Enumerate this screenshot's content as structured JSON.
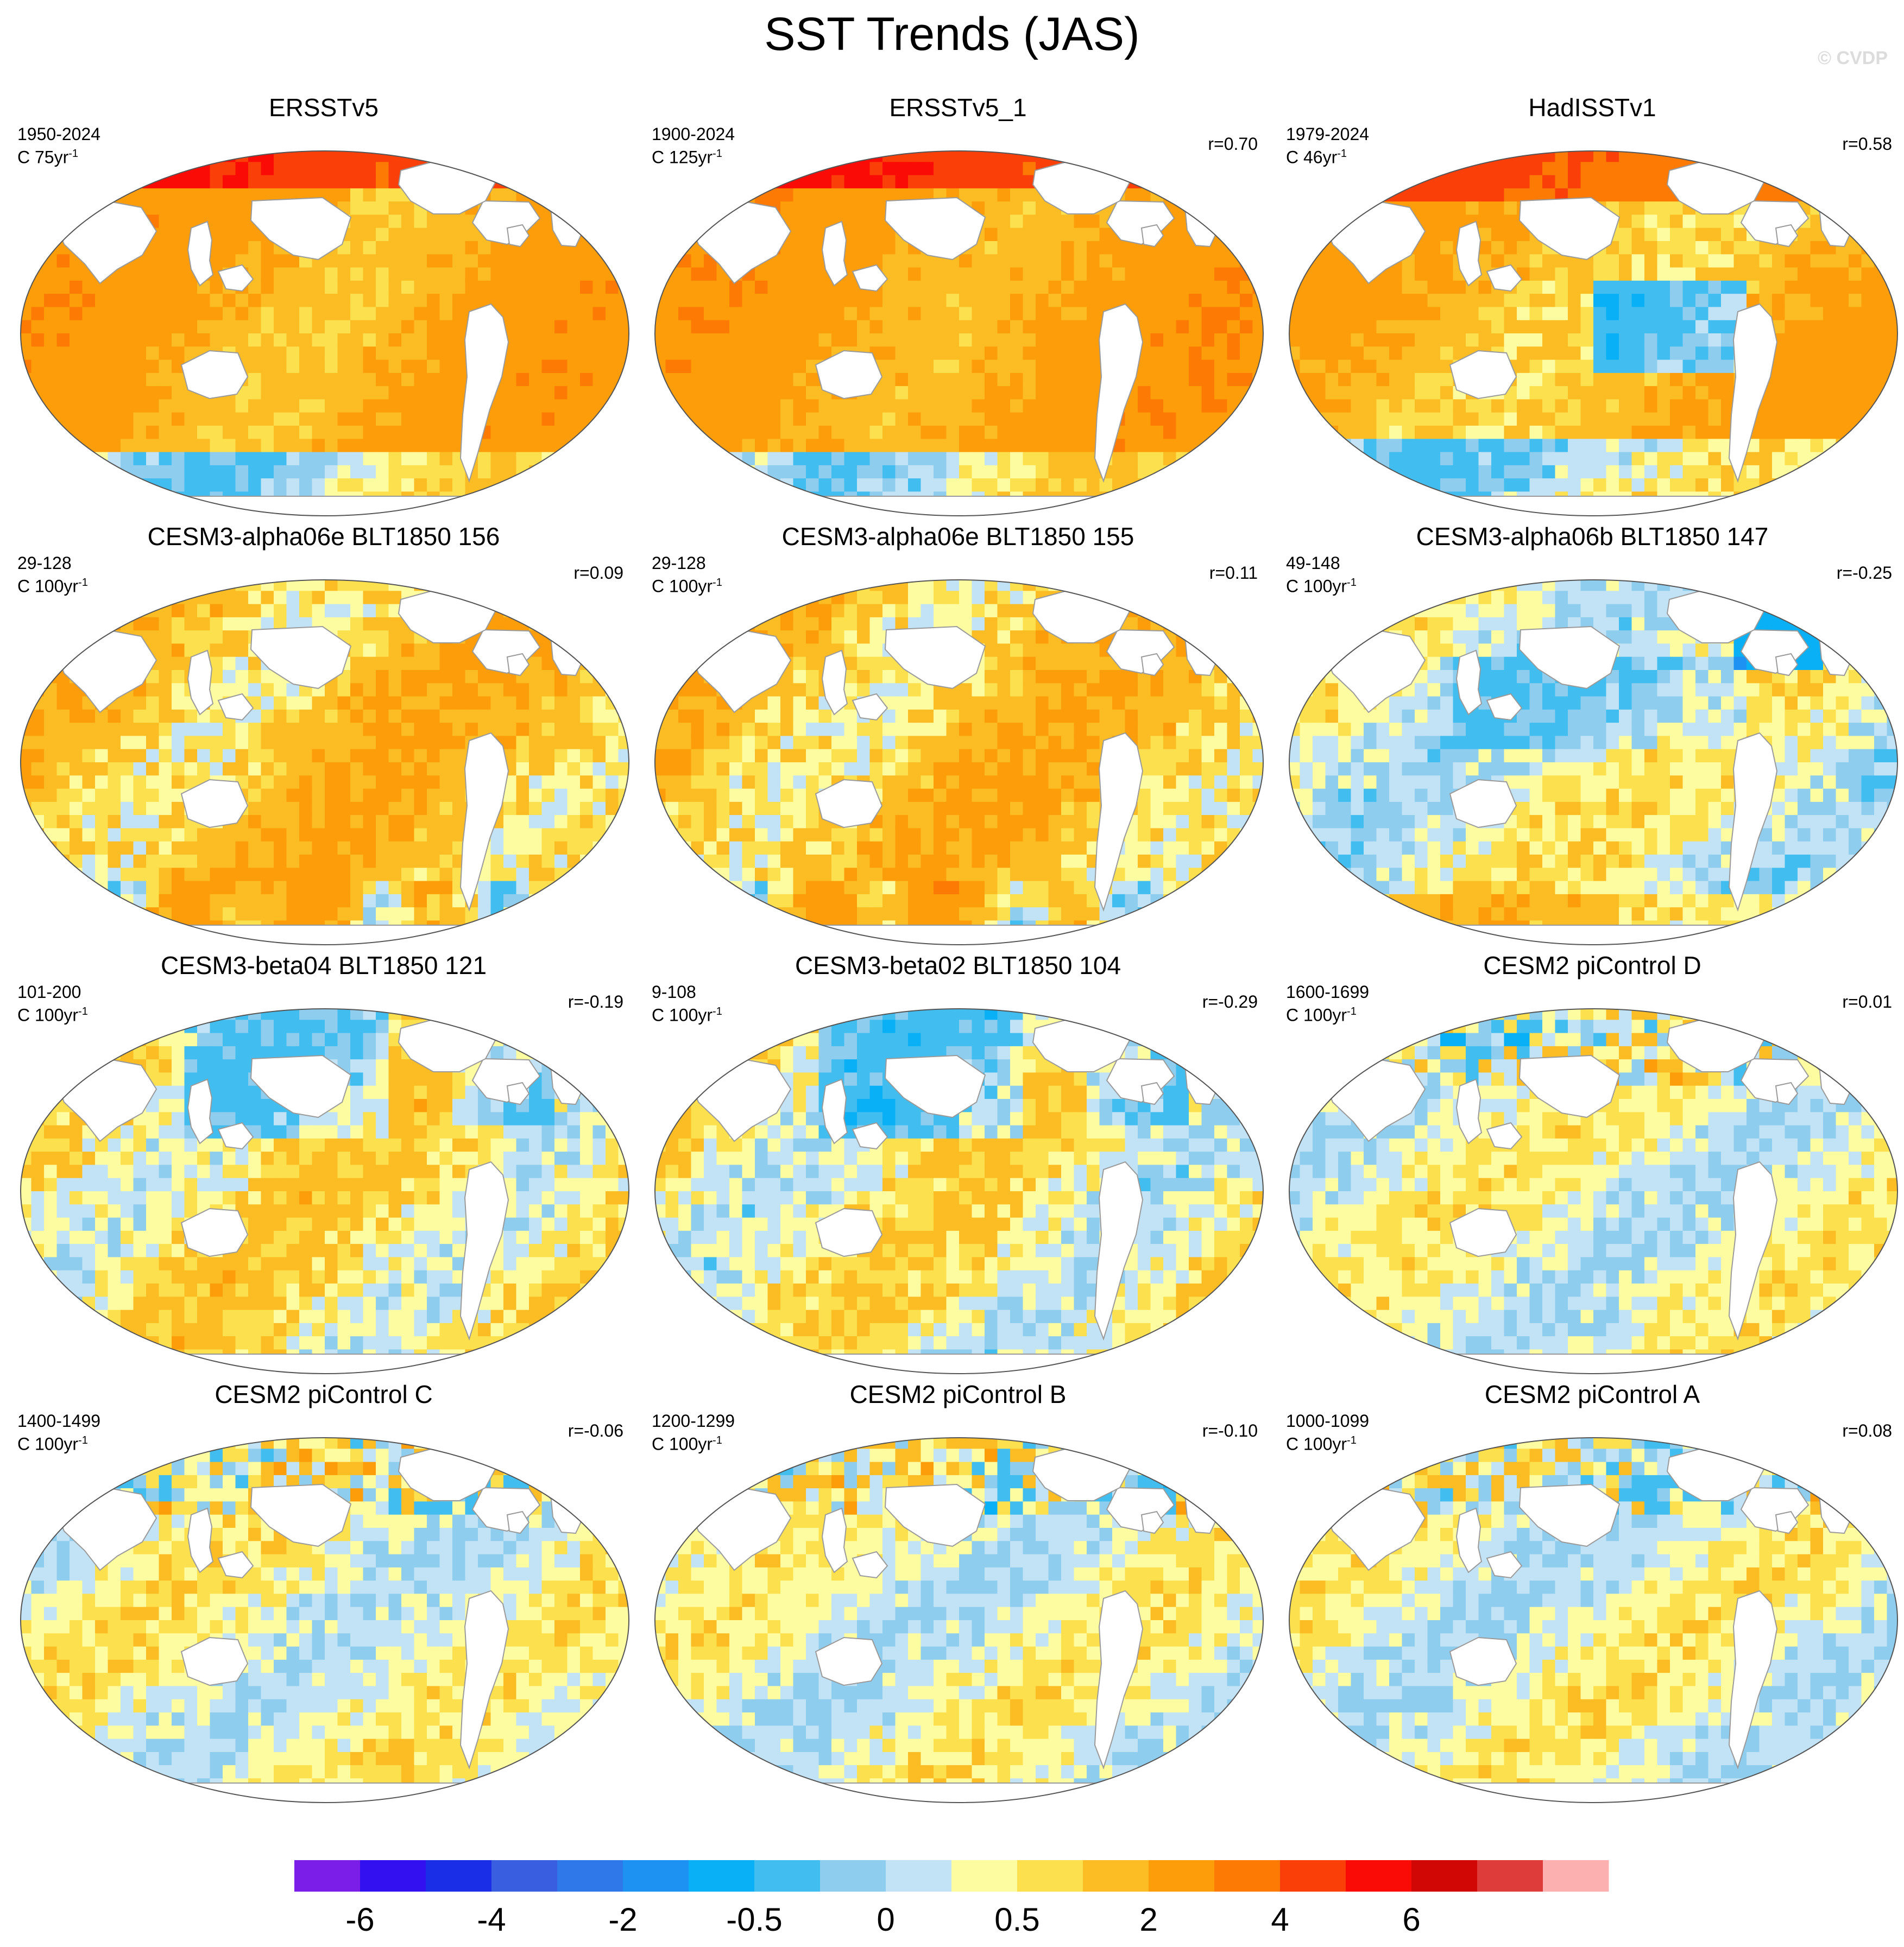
{
  "figure": {
    "title": "SST Trends (JAS)",
    "watermark": "© CVDP"
  },
  "colors": {
    "land": "#ffffff",
    "coast": "#9a9a9a",
    "outline": "#555555"
  },
  "chart_data": {
    "type": "heatmap",
    "title": "SST Trends (JAS)",
    "panels": [
      {
        "title": "ERSSTv5",
        "period": "1950-2024",
        "units": "C 75yr",
        "units_exp": "-1",
        "r": "",
        "base": 1.2,
        "mode": "warm"
      },
      {
        "title": "ERSSTv5_1",
        "period": "1900-2024",
        "units": "C 125yr",
        "units_exp": "-1",
        "r": "r=0.70",
        "base": 1.3,
        "mode": "warm"
      },
      {
        "title": "HadISSTv1",
        "period": "1979-2024",
        "units": "C 46yr",
        "units_exp": "-1",
        "r": "r=0.58",
        "base": 0.9,
        "mode": "had"
      },
      {
        "title": "CESM3-alpha06e BLT1850 156",
        "period": "29-128",
        "units": "C 100yr",
        "units_exp": "-1",
        "r": "r=0.09",
        "base": 0.7,
        "mode": "model-warm"
      },
      {
        "title": "CESM3-alpha06e BLT1850 155",
        "period": "29-128",
        "units": "C 100yr",
        "units_exp": "-1",
        "r": "r=0.11",
        "base": 0.65,
        "mode": "model-warm"
      },
      {
        "title": "CESM3-alpha06b BLT1850 147",
        "period": "49-148",
        "units": "C 100yr",
        "units_exp": "-1",
        "r": "r=-0.25",
        "base": 0.05,
        "mode": "model-cool"
      },
      {
        "title": "CESM3-beta04 BLT1850 121",
        "period": "101-200",
        "units": "C 100yr",
        "units_exp": "-1",
        "r": "r=-0.19",
        "base": 0.3,
        "mode": "model-mixed"
      },
      {
        "title": "CESM3-beta02 BLT1850 104",
        "period": "9-108",
        "units": "C 100yr",
        "units_exp": "-1",
        "r": "r=-0.29",
        "base": 0.2,
        "mode": "model-mixed"
      },
      {
        "title": "CESM2 piControl D",
        "period": "1600-1699",
        "units": "C 100yr",
        "units_exp": "-1",
        "r": "r=0.01",
        "base": 0.05,
        "mode": "pi"
      },
      {
        "title": "CESM2 piControl C",
        "period": "1400-1499",
        "units": "C 100yr",
        "units_exp": "-1",
        "r": "r=-0.06",
        "base": 0.08,
        "mode": "pi"
      },
      {
        "title": "CESM2 piControl B",
        "period": "1200-1299",
        "units": "C 100yr",
        "units_exp": "-1",
        "r": "r=-0.10",
        "base": 0.05,
        "mode": "pi"
      },
      {
        "title": "CESM2 piControl A",
        "period": "1000-1099",
        "units": "C 100yr",
        "units_exp": "-1",
        "r": "r=0.08",
        "base": 0.05,
        "mode": "pi"
      }
    ],
    "colorbar": {
      "levels": [
        -8,
        -6,
        -5,
        -4,
        -3,
        -2,
        -1,
        -0.5,
        -0.25,
        0,
        0.25,
        0.5,
        1,
        2,
        3,
        4,
        5,
        6,
        8
      ],
      "colors": [
        "#7b1fe8",
        "#3310f0",
        "#1a2ee8",
        "#3a5ee0",
        "#2f78ea",
        "#1d92f2",
        "#09b0f5",
        "#42bdf0",
        "#8fcdee",
        "#c2e2f5",
        "#fefca0",
        "#fde04e",
        "#fcbc23",
        "#fd9d09",
        "#fd7a04",
        "#fb3f09",
        "#fb0b05",
        "#d10706",
        "#dd3c3b",
        "#fdb0b0"
      ],
      "tick_labels": [
        "-6",
        "-4",
        "-2",
        "-0.5",
        "0",
        "0.5",
        "2",
        "4",
        "6"
      ]
    }
  }
}
